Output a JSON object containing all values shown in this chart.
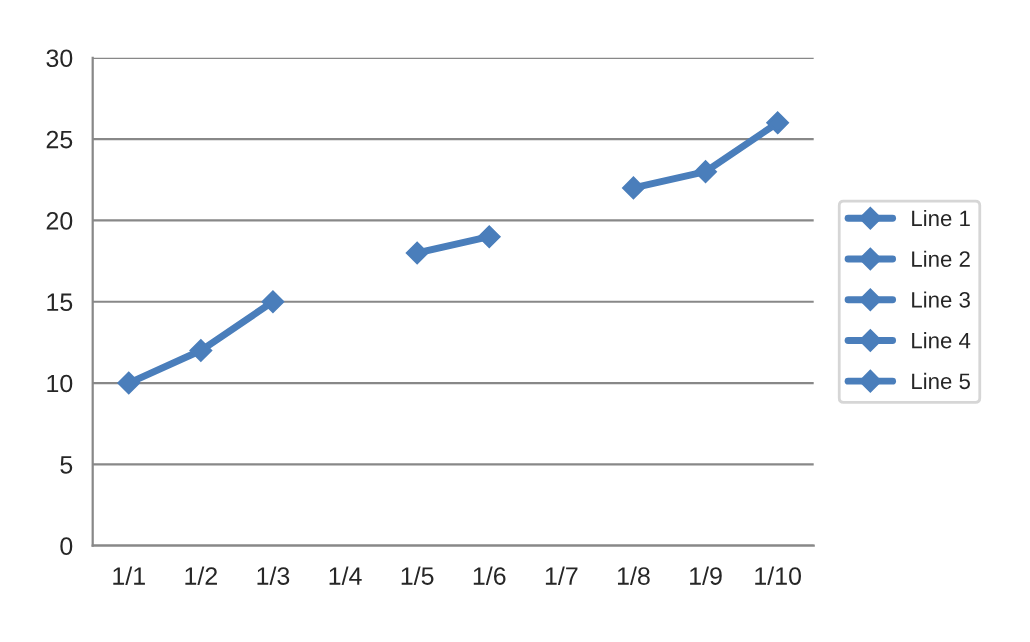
{
  "chart_data": {
    "type": "line",
    "categories": [
      "1/1",
      "1/2",
      "1/3",
      "1/4",
      "1/5",
      "1/6",
      "1/7",
      "1/8",
      "1/9",
      "1/10"
    ],
    "series": [
      {
        "name": "Line 1",
        "color": "#4a7ebb",
        "values": [
          10,
          12,
          15,
          null,
          18,
          19,
          null,
          22,
          23,
          26
        ]
      },
      {
        "name": "Line 2",
        "color": "#4a7ebb",
        "values": [
          null,
          null,
          null,
          null,
          null,
          null,
          null,
          null,
          null,
          null
        ]
      },
      {
        "name": "Line 3",
        "color": "#4a7ebb",
        "values": [
          null,
          null,
          null,
          null,
          null,
          null,
          null,
          null,
          null,
          null
        ]
      },
      {
        "name": "Line 4",
        "color": "#4a7ebb",
        "values": [
          null,
          null,
          null,
          null,
          null,
          null,
          null,
          null,
          null,
          null
        ]
      },
      {
        "name": "Line 5",
        "color": "#4a7ebb",
        "values": [
          null,
          null,
          null,
          null,
          null,
          null,
          null,
          null,
          null,
          null
        ]
      }
    ],
    "ylim": [
      0,
      30
    ],
    "yticks": [
      0,
      5,
      10,
      15,
      20,
      25,
      30
    ],
    "grid": "y",
    "legend": "right",
    "marker": "diamond",
    "line_style": "solid"
  }
}
